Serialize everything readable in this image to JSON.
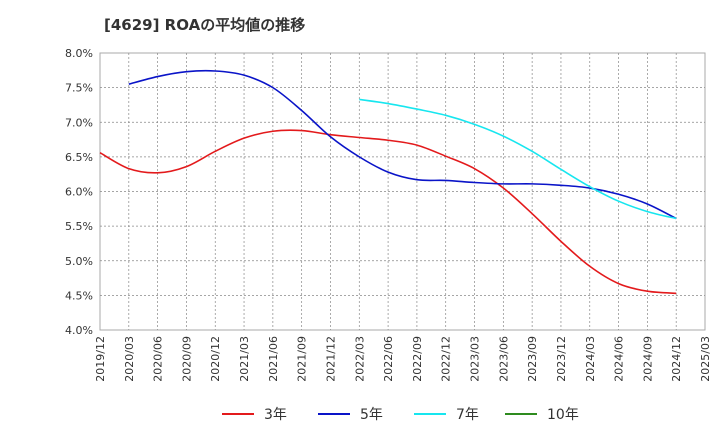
{
  "chart_data": {
    "type": "line",
    "title": "[4629]  ROAの平均値の推移",
    "xlabel": "",
    "ylabel": "",
    "ylim": [
      4.0,
      8.0
    ],
    "y_ticks": [
      "4.0%",
      "4.5%",
      "5.0%",
      "5.5%",
      "6.0%",
      "6.5%",
      "7.0%",
      "7.5%",
      "8.0%"
    ],
    "x_ticks": [
      "2019/12",
      "2020/03",
      "2020/06",
      "2020/09",
      "2020/12",
      "2021/03",
      "2021/06",
      "2021/09",
      "2021/12",
      "2022/03",
      "2022/06",
      "2022/09",
      "2022/12",
      "2023/03",
      "2023/06",
      "2023/09",
      "2023/12",
      "2024/03",
      "2024/06",
      "2024/09",
      "2024/12",
      "2025/03"
    ],
    "grid": true,
    "legend_position": "bottom",
    "series": [
      {
        "name": "3年",
        "color": "#e31a1c",
        "x": [
          "2019/12",
          "2020/03",
          "2020/06",
          "2020/09",
          "2020/12",
          "2021/03",
          "2021/06",
          "2021/09",
          "2021/12",
          "2022/03",
          "2022/06",
          "2022/09",
          "2022/12",
          "2023/03",
          "2023/06",
          "2023/09",
          "2023/12",
          "2024/03",
          "2024/06",
          "2024/09",
          "2024/12"
        ],
        "values": [
          6.56,
          6.33,
          6.27,
          6.36,
          6.58,
          6.77,
          6.87,
          6.88,
          6.82,
          6.78,
          6.74,
          6.67,
          6.51,
          6.33,
          6.05,
          5.68,
          5.28,
          4.92,
          4.67,
          4.56,
          4.53
        ]
      },
      {
        "name": "5年",
        "color": "#0a14c8",
        "x": [
          "2020/03",
          "2020/06",
          "2020/09",
          "2020/12",
          "2021/03",
          "2021/06",
          "2021/09",
          "2021/12",
          "2022/03",
          "2022/06",
          "2022/09",
          "2022/12",
          "2023/03",
          "2023/06",
          "2023/09",
          "2023/12",
          "2024/03",
          "2024/06",
          "2024/09",
          "2024/12"
        ],
        "values": [
          7.55,
          7.66,
          7.73,
          7.74,
          7.68,
          7.5,
          7.17,
          6.79,
          6.5,
          6.28,
          6.17,
          6.16,
          6.13,
          6.11,
          6.11,
          6.09,
          6.05,
          5.96,
          5.82,
          5.61
        ]
      },
      {
        "name": "7年",
        "color": "#17e6ef",
        "x": [
          "2022/03",
          "2022/06",
          "2022/09",
          "2022/12",
          "2023/03",
          "2023/06",
          "2023/09",
          "2023/12",
          "2024/03",
          "2024/06",
          "2024/09",
          "2024/12"
        ],
        "values": [
          7.33,
          7.27,
          7.19,
          7.1,
          6.97,
          6.8,
          6.58,
          6.32,
          6.07,
          5.86,
          5.71,
          5.61
        ]
      },
      {
        "name": "10年",
        "color": "#2e8b1f",
        "x": [],
        "values": []
      }
    ]
  }
}
